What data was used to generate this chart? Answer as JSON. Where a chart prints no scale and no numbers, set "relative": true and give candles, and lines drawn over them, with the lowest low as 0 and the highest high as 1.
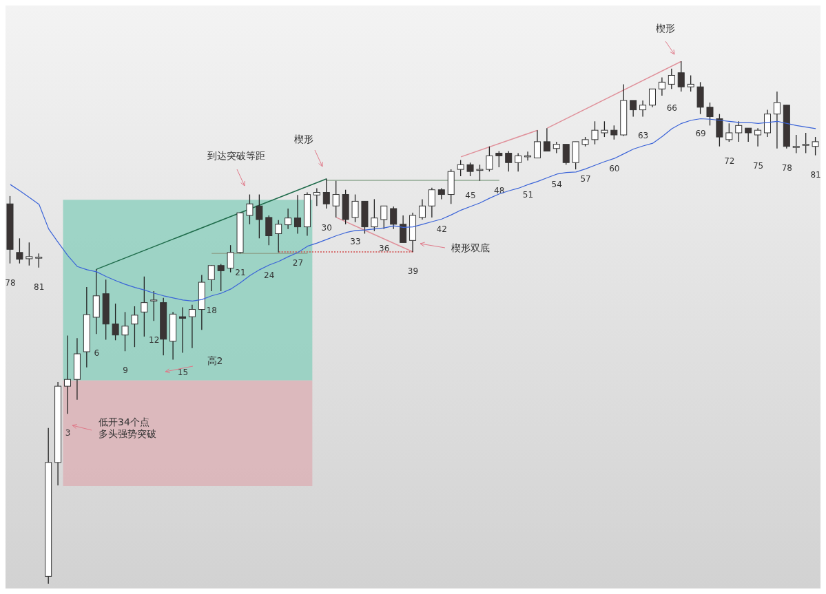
{
  "chart_data": {
    "type": "candlestick",
    "relative": true,
    "categories": [
      "78",
      null,
      null,
      "81",
      null,
      null,
      "3",
      null,
      null,
      "6",
      null,
      null,
      "9",
      null,
      null,
      "12",
      null,
      null,
      "15",
      null,
      null,
      "18",
      null,
      null,
      "21",
      null,
      null,
      "24",
      null,
      null,
      "27",
      null,
      null,
      "30",
      null,
      null,
      "33",
      null,
      null,
      "36",
      null,
      null,
      "39",
      null,
      null,
      "42",
      null,
      null,
      "45",
      null,
      null,
      "48",
      null,
      null,
      "51",
      null,
      null,
      "54",
      null,
      null,
      "57",
      null,
      null,
      "60",
      null,
      null,
      "63",
      null,
      null,
      "66",
      null,
      null,
      "69",
      null,
      null,
      "72",
      null,
      null,
      "75",
      null,
      null,
      "78",
      null,
      null,
      "81"
    ],
    "ohlc": [
      [
        0.727,
        0.742,
        0.613,
        0.64
      ],
      [
        0.634,
        0.661,
        0.613,
        0.621
      ],
      [
        0.622,
        0.653,
        0.609,
        0.626
      ],
      [
        0.625,
        0.632,
        0.605,
        0.625
      ],
      [
        0.014,
        0.298,
        0,
        0.232
      ],
      [
        0.232,
        0.386,
        0.188,
        0.378
      ],
      [
        0.378,
        0.475,
        0.325,
        0.391
      ],
      [
        0.391,
        0.47,
        0.352,
        0.44
      ],
      [
        0.444,
        0.568,
        0.414,
        0.515
      ],
      [
        0.51,
        0.602,
        0.478,
        0.551
      ],
      [
        0.555,
        0.582,
        0.467,
        0.497
      ],
      [
        0.497,
        0.536,
        0.466,
        0.476
      ],
      [
        0.476,
        0.52,
        0.445,
        0.493
      ],
      [
        0.497,
        0.531,
        0.453,
        0.514
      ],
      [
        0.52,
        0.588,
        0.473,
        0.538
      ],
      [
        0.543,
        0.56,
        0.503,
        0.543
      ],
      [
        0.538,
        0.547,
        0.437,
        0.468
      ],
      [
        0.464,
        0.52,
        0.429,
        0.516
      ],
      [
        0.511,
        0.529,
        0.442,
        0.508
      ],
      [
        0.511,
        0.534,
        0.451,
        0.525
      ],
      [
        0.525,
        0.591,
        0.486,
        0.577
      ],
      [
        0.582,
        0.61,
        0.56,
        0.609
      ],
      [
        0.609,
        0.612,
        0.56,
        0.599
      ],
      [
        0.604,
        0.648,
        0.596,
        0.634
      ],
      [
        0.634,
        0.71,
        0.632,
        0.71
      ],
      [
        0.705,
        0.745,
        0.688,
        0.727
      ],
      [
        0.723,
        0.745,
        0.661,
        0.697
      ],
      [
        0.701,
        0.705,
        0.648,
        0.666
      ],
      [
        0.67,
        0.696,
        0.634,
        0.688
      ],
      [
        0.687,
        0.718,
        0.679,
        0.7
      ],
      [
        0.7,
        0.744,
        0.67,
        0.683
      ],
      [
        0.683,
        0.749,
        0.666,
        0.745
      ],
      [
        0.744,
        0.757,
        0.723,
        0.749
      ],
      [
        0.749,
        0.775,
        0.718,
        0.727
      ],
      [
        0.723,
        0.771,
        0.701,
        0.745
      ],
      [
        0.745,
        0.754,
        0.688,
        0.697
      ],
      [
        0.701,
        0.745,
        0.692,
        0.732
      ],
      [
        0.732,
        0.732,
        0.67,
        0.683
      ],
      [
        0.683,
        0.736,
        0.675,
        0.7
      ],
      [
        0.697,
        0.723,
        0.679,
        0.723
      ],
      [
        0.718,
        0.722,
        0.679,
        0.688
      ],
      [
        0.688,
        0.705,
        0.653,
        0.653
      ],
      [
        0.657,
        0.71,
        0.635,
        0.705
      ],
      [
        0.701,
        0.736,
        0.697,
        0.723
      ],
      [
        0.723,
        0.758,
        0.701,
        0.754
      ],
      [
        0.754,
        0.757,
        0.736,
        0.745
      ],
      [
        0.745,
        0.793,
        0.727,
        0.789
      ],
      [
        0.793,
        0.811,
        0.78,
        0.802
      ],
      [
        0.802,
        0.806,
        0.78,
        0.789
      ],
      [
        0.793,
        0.802,
        0.771,
        0.793
      ],
      [
        0.793,
        0.837,
        0.789,
        0.819
      ],
      [
        0.824,
        0.828,
        0.797,
        0.819
      ],
      [
        0.824,
        0.828,
        0.789,
        0.806
      ],
      [
        0.806,
        0.824,
        0.789,
        0.819
      ],
      [
        0.819,
        0.827,
        0.81,
        0.819
      ],
      [
        0.815,
        0.868,
        0.815,
        0.846
      ],
      [
        0.846,
        0.872,
        0.828,
        0.828
      ],
      [
        0.833,
        0.846,
        0.824,
        0.841
      ],
      [
        0.841,
        0.841,
        0.802,
        0.806
      ],
      [
        0.806,
        0.846,
        0.793,
        0.846
      ],
      [
        0.841,
        0.855,
        0.837,
        0.85
      ],
      [
        0.85,
        0.885,
        0.841,
        0.868
      ],
      [
        0.863,
        0.885,
        0.855,
        0.868
      ],
      [
        0.868,
        0.877,
        0.85,
        0.859
      ],
      [
        0.859,
        0.956,
        0.857,
        0.925
      ],
      [
        0.925,
        0.925,
        0.894,
        0.907
      ],
      [
        0.907,
        0.925,
        0.894,
        0.916
      ],
      [
        0.916,
        0.947,
        0.912,
        0.947
      ],
      [
        0.947,
        0.969,
        0.934,
        0.96
      ],
      [
        0.956,
        0.986,
        0.947,
        0.973
      ],
      [
        0.978,
        1,
        0.942,
        0.951
      ],
      [
        0.951,
        0.973,
        0.942,
        0.956
      ],
      [
        0.951,
        0.96,
        0.899,
        0.912
      ],
      [
        0.912,
        0.921,
        0.877,
        0.894
      ],
      [
        0.89,
        0.899,
        0.837,
        0.855
      ],
      [
        0.85,
        0.881,
        0.846,
        0.863
      ],
      [
        0.863,
        0.885,
        0.846,
        0.877
      ],
      [
        0.872,
        0.872,
        0.846,
        0.863
      ],
      [
        0.859,
        0.872,
        0.837,
        0.868
      ],
      [
        0.863,
        0.907,
        0.855,
        0.899
      ],
      [
        0.899,
        0.942,
        0.833,
        0.921
      ],
      [
        0.916,
        0.916,
        0.833,
        0.837
      ],
      [
        0.837,
        0.859,
        0.824,
        0.837
      ],
      [
        0.841,
        0.863,
        0.824,
        0.841
      ],
      [
        0.837,
        0.855,
        0.82,
        0.846
      ]
    ],
    "series": [
      {
        "type": "line",
        "color": "#3a63d8",
        "values": [
          0.764,
          0.752,
          0.739,
          0.726,
          0.679,
          0.653,
          0.628,
          0.607,
          0.601,
          0.597,
          0.588,
          0.58,
          0.573,
          0.567,
          0.562,
          0.556,
          0.551,
          0.547,
          0.543,
          0.541,
          0.544,
          0.551,
          0.556,
          0.564,
          0.576,
          0.59,
          0.601,
          0.61,
          0.617,
          0.626,
          0.634,
          0.646,
          0.652,
          0.659,
          0.666,
          0.672,
          0.676,
          0.677,
          0.679,
          0.681,
          0.685,
          0.682,
          0.683,
          0.688,
          0.693,
          0.698,
          0.706,
          0.715,
          0.722,
          0.729,
          0.738,
          0.746,
          0.752,
          0.757,
          0.764,
          0.77,
          0.777,
          0.784,
          0.787,
          0.788,
          0.794,
          0.801,
          0.808,
          0.814,
          0.823,
          0.832,
          0.838,
          0.843,
          0.856,
          0.871,
          0.881,
          0.887,
          0.89,
          0.889,
          0.887,
          0.885,
          0.883,
          0.883,
          0.881,
          0.883,
          0.885,
          0.881,
          0.877,
          0.874,
          0.871
        ]
      },
      {
        "type": "line",
        "color": "#1e6b4a",
        "values": [
          null,
          null,
          null,
          null,
          null,
          null,
          null,
          null,
          null,
          0.602,
          null,
          null,
          null,
          null,
          null,
          null,
          null,
          null,
          null,
          null,
          null,
          null,
          null,
          null,
          null,
          null,
          null,
          null,
          null,
          null,
          null,
          null,
          null,
          0.775,
          null,
          null,
          null,
          null,
          null,
          null,
          null,
          null,
          null,
          null,
          null,
          null,
          null,
          null,
          null,
          null,
          null,
          null,
          null,
          null,
          null,
          null,
          null,
          null,
          null,
          null,
          null,
          null,
          null,
          null,
          null,
          null,
          null,
          null,
          null,
          null,
          null,
          null,
          null,
          null,
          null,
          null,
          null,
          null,
          null,
          null,
          null,
          null,
          null,
          null,
          null
        ]
      },
      {
        "type": "line",
        "color": "#e0909a",
        "values": [
          null,
          null,
          null,
          null,
          null,
          null,
          null,
          null,
          null,
          null,
          null,
          null,
          null,
          null,
          null,
          null,
          null,
          null,
          null,
          null,
          null,
          null,
          null,
          null,
          null,
          null,
          null,
          null,
          null,
          null,
          null,
          null,
          null,
          null,
          0.701,
          null,
          null,
          null,
          null,
          null,
          null,
          null,
          0.635,
          null,
          null,
          null,
          null,
          null,
          null,
          null,
          null,
          null,
          null,
          null,
          null,
          null,
          null,
          null,
          null,
          null,
          null,
          null,
          null,
          null,
          null,
          null,
          null,
          null,
          null,
          null,
          null,
          null,
          null,
          null,
          null,
          null,
          null,
          null,
          null,
          null,
          null,
          null,
          null,
          null,
          null
        ]
      },
      {
        "type": "line",
        "color": "#e0909a",
        "values": [
          null,
          null,
          null,
          null,
          null,
          null,
          null,
          null,
          null,
          null,
          null,
          null,
          null,
          null,
          null,
          null,
          null,
          null,
          null,
          null,
          null,
          null,
          null,
          null,
          null,
          null,
          null,
          null,
          null,
          null,
          null,
          null,
          null,
          null,
          null,
          null,
          null,
          null,
          null,
          null,
          null,
          null,
          null,
          null,
          null,
          null,
          null,
          0.817,
          null,
          null,
          null,
          null,
          null,
          null,
          null,
          0.868,
          null,
          null,
          null,
          null,
          null,
          null,
          null,
          null,
          null,
          null,
          null,
          null,
          null,
          null,
          null,
          null,
          null,
          null,
          null,
          null,
          null,
          null,
          null,
          null,
          null,
          null,
          null,
          null,
          null
        ]
      },
      {
        "type": "line",
        "color": "#e0909a",
        "values": [
          null,
          null,
          null,
          null,
          null,
          null,
          null,
          null,
          null,
          null,
          null,
          null,
          null,
          null,
          null,
          null,
          null,
          null,
          null,
          null,
          null,
          null,
          null,
          null,
          null,
          null,
          null,
          null,
          null,
          null,
          null,
          null,
          null,
          null,
          null,
          null,
          null,
          null,
          null,
          null,
          null,
          null,
          null,
          null,
          null,
          null,
          null,
          null,
          null,
          null,
          null,
          null,
          null,
          null,
          null,
          null,
          0.872,
          null,
          null,
          null,
          null,
          null,
          null,
          null,
          null,
          null,
          null,
          null,
          null,
          null,
          1,
          null,
          null,
          null,
          null,
          null,
          null,
          null,
          null,
          null,
          null,
          null,
          null,
          null,
          null
        ]
      },
      {
        "type": "line",
        "color": "#8fa892",
        "values": [
          null,
          null,
          null,
          null,
          null,
          null,
          null,
          null,
          null,
          null,
          null,
          null,
          null,
          null,
          null,
          null,
          null,
          null,
          null,
          null,
          null,
          null,
          null,
          null,
          null,
          null,
          null,
          null,
          null,
          null,
          null,
          null,
          null,
          0.772,
          null,
          null,
          null,
          null,
          null,
          null,
          null,
          null,
          null,
          null,
          null,
          null,
          null,
          null,
          null,
          null,
          null,
          0.772,
          null,
          null,
          null,
          null,
          null,
          null,
          null,
          null,
          null,
          null,
          null,
          null,
          null,
          null,
          null,
          null,
          null,
          null,
          null,
          null,
          null,
          null,
          null,
          null,
          null,
          null,
          null,
          null,
          null,
          null,
          null,
          null,
          null
        ]
      },
      {
        "type": "line",
        "color": "#8fa892",
        "values": [
          null,
          null,
          null,
          null,
          null,
          null,
          null,
          null,
          null,
          null,
          null,
          null,
          null,
          null,
          null,
          null,
          null,
          null,
          null,
          null,
          null,
          0.632,
          null,
          null,
          null,
          null,
          null,
          null,
          null,
          null,
          null,
          0.632,
          null,
          null,
          null,
          null,
          null,
          null,
          null,
          null,
          null,
          null,
          null,
          null,
          null,
          null,
          null,
          null,
          null,
          null,
          null,
          null,
          null,
          null,
          null,
          null,
          null,
          null,
          null,
          null,
          null,
          null,
          null,
          null,
          null,
          null,
          null,
          null,
          null,
          null,
          null,
          null,
          null,
          null,
          null,
          null,
          null,
          null,
          null,
          null,
          null,
          null,
          null,
          null,
          null
        ]
      },
      {
        "type": "line",
        "color": "#d04848",
        "line_style": "dotted",
        "values": [
          null,
          null,
          null,
          null,
          null,
          null,
          null,
          null,
          null,
          null,
          null,
          null,
          null,
          null,
          null,
          null,
          null,
          null,
          null,
          null,
          null,
          null,
          null,
          null,
          null,
          null,
          null,
          null,
          0.635,
          null,
          null,
          null,
          null,
          null,
          null,
          null,
          null,
          null,
          null,
          null,
          null,
          null,
          0.635,
          null,
          null,
          null,
          null,
          null,
          null,
          null,
          null,
          null,
          null,
          null,
          null,
          null,
          null,
          null,
          null,
          null,
          null,
          null,
          null,
          null,
          null,
          null,
          null,
          null,
          null,
          null,
          null,
          null,
          null,
          null,
          null,
          null,
          null,
          null,
          null,
          null,
          null,
          null,
          null,
          null,
          null
        ]
      }
    ],
    "bands": [
      {
        "axis": "y",
        "from": 0.389,
        "to": 0.735,
        "color": "#90d0c0"
      },
      {
        "axis": "y",
        "from": 0.187,
        "to": 0.389,
        "color": "#dcb3b7"
      }
    ],
    "annotations": [
      "楔形",
      "到达突破等距",
      "楔形",
      "楔形双底",
      "高2",
      "低开34个点多头强势突破"
    ]
  }
}
